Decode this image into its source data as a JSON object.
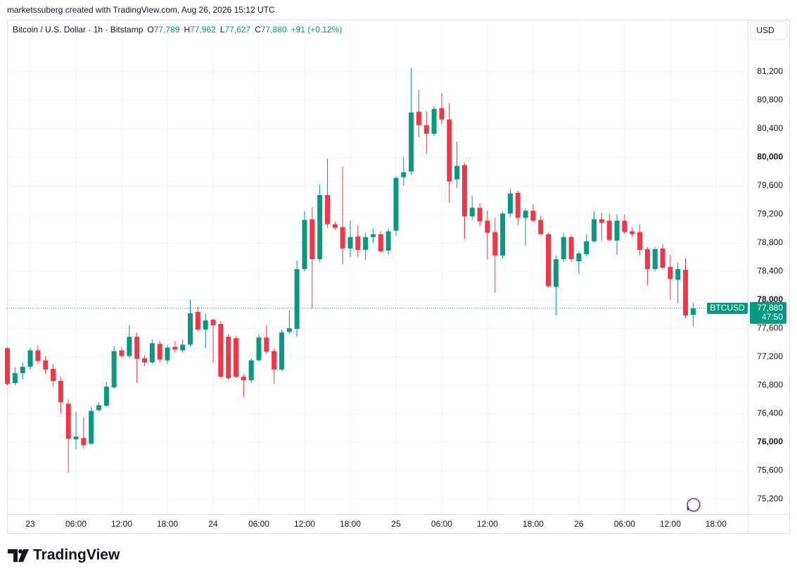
{
  "watermark": "marketssuberg created with TradingView.com, Aug 26, 2026 15:12 UTC",
  "footer": "TradingView",
  "currency_button": "USD",
  "legend": {
    "instrument": "Bitcoin / U.S. Dollar · 1h · Bitstamp",
    "items": [
      {
        "key": "O",
        "text": "77,789"
      },
      {
        "key": "H",
        "text": "77,962"
      },
      {
        "key": "L",
        "text": "77,627"
      },
      {
        "key": "C",
        "text": "77,880"
      }
    ],
    "change": "+91 (+0.12%)"
  },
  "last_price": {
    "symbol": "BTCUSD",
    "price": "77,880",
    "countdown": "47:50"
  },
  "chart_data": {
    "type": "candlestick",
    "up_color": "#089981",
    "down_color": "#f23645",
    "grid": true,
    "x": [
      "2026-08-22T21:00",
      "2026-08-22T22:00",
      "2026-08-22T23:00",
      "2026-08-23T00:00",
      "2026-08-23T01:00",
      "2026-08-23T02:00",
      "2026-08-23T03:00",
      "2026-08-23T04:00",
      "2026-08-23T05:00",
      "2026-08-23T06:00",
      "2026-08-23T07:00",
      "2026-08-23T08:00",
      "2026-08-23T09:00",
      "2026-08-23T10:00",
      "2026-08-23T11:00",
      "2026-08-23T12:00",
      "2026-08-23T13:00",
      "2026-08-23T14:00",
      "2026-08-23T15:00",
      "2026-08-23T16:00",
      "2026-08-23T17:00",
      "2026-08-23T18:00",
      "2026-08-23T19:00",
      "2026-08-23T20:00",
      "2026-08-23T21:00",
      "2026-08-23T22:00",
      "2026-08-23T23:00",
      "2026-08-24T00:00",
      "2026-08-24T01:00",
      "2026-08-24T02:00",
      "2026-08-24T03:00",
      "2026-08-24T04:00",
      "2026-08-24T05:00",
      "2026-08-24T06:00",
      "2026-08-24T07:00",
      "2026-08-24T08:00",
      "2026-08-24T09:00",
      "2026-08-24T10:00",
      "2026-08-24T11:00",
      "2026-08-24T12:00",
      "2026-08-24T13:00",
      "2026-08-24T14:00",
      "2026-08-24T15:00",
      "2026-08-24T16:00",
      "2026-08-24T17:00",
      "2026-08-24T18:00",
      "2026-08-24T19:00",
      "2026-08-24T20:00",
      "2026-08-24T21:00",
      "2026-08-24T22:00",
      "2026-08-24T23:00",
      "2026-08-25T00:00",
      "2026-08-25T01:00",
      "2026-08-25T02:00",
      "2026-08-25T03:00",
      "2026-08-25T04:00",
      "2026-08-25T05:00",
      "2026-08-25T06:00",
      "2026-08-25T07:00",
      "2026-08-25T08:00",
      "2026-08-25T09:00",
      "2026-08-25T10:00",
      "2026-08-25T11:00",
      "2026-08-25T12:00",
      "2026-08-25T13:00",
      "2026-08-25T14:00",
      "2026-08-25T15:00",
      "2026-08-25T16:00",
      "2026-08-25T17:00",
      "2026-08-25T18:00",
      "2026-08-25T19:00",
      "2026-08-25T20:00",
      "2026-08-25T21:00",
      "2026-08-25T22:00",
      "2026-08-25T23:00",
      "2026-08-26T00:00",
      "2026-08-26T01:00",
      "2026-08-26T02:00",
      "2026-08-26T03:00",
      "2026-08-26T04:00",
      "2026-08-26T05:00",
      "2026-08-26T06:00",
      "2026-08-26T07:00",
      "2026-08-26T08:00",
      "2026-08-26T09:00",
      "2026-08-26T10:00",
      "2026-08-26T11:00",
      "2026-08-26T12:00",
      "2026-08-26T13:00",
      "2026-08-26T14:00",
      "2026-08-26T15:00"
    ],
    "open": [
      77320,
      76830,
      76970,
      77060,
      77290,
      77150,
      77030,
      76860,
      76540,
      76040,
      76060,
      75980,
      76450,
      76510,
      76770,
      77290,
      77210,
      77480,
      77180,
      77120,
      77380,
      77150,
      77340,
      77290,
      77370,
      77830,
      77580,
      77720,
      77660,
      77480,
      77460,
      76920,
      76870,
      77150,
      77470,
      77280,
      77020,
      77550,
      77590,
      78430,
      79130,
      78570,
      79470,
      79060,
      79020,
      78720,
      78890,
      78700,
      78880,
      78920,
      78690,
      78970,
      79720,
      79800,
      80640,
      80450,
      80330,
      80690,
      80530,
      79690,
      79890,
      79170,
      79290,
      79110,
      78950,
      78620,
      79210,
      79500,
      79150,
      79250,
      79120,
      78920,
      78180,
      78570,
      78880,
      78540,
      78640,
      78820,
      79130,
      79110,
      78830,
      79110,
      78960,
      78950,
      78710,
      78430,
      78720,
      78460,
      78280,
      78420,
      77789
    ],
    "high": [
      77330,
      77050,
      77120,
      77330,
      77360,
      77210,
      77100,
      76920,
      76600,
      76430,
      76350,
      76500,
      76560,
      76850,
      77350,
      77330,
      77640,
      77540,
      77220,
      77440,
      77420,
      77370,
      77420,
      77440,
      78000,
      77900,
      77810,
      77730,
      77700,
      77520,
      77490,
      76950,
      77180,
      77520,
      77640,
      77320,
      77580,
      77850,
      78550,
      79240,
      79300,
      79620,
      79980,
      79100,
      79870,
      79110,
      79050,
      78950,
      79000,
      78960,
      79000,
      79730,
      80000,
      81250,
      80950,
      80650,
      80720,
      80900,
      80760,
      80220,
      79920,
      79460,
      79350,
      79250,
      79150,
      79240,
      79560,
      79530,
      79280,
      79340,
      79180,
      78940,
      78620,
      78940,
      78910,
      78680,
      78920,
      79240,
      79220,
      79210,
      79200,
      79200,
      79020,
      79060,
      78740,
      78740,
      78780,
      78630,
      78520,
      78580,
      77962
    ],
    "low": [
      76800,
      76800,
      76880,
      77020,
      77100,
      76960,
      76780,
      76400,
      75570,
      75900,
      75910,
      75960,
      76430,
      76500,
      76750,
      77180,
      77180,
      76830,
      77070,
      77100,
      77120,
      77100,
      77260,
      77260,
      77340,
      77560,
      77320,
      77120,
      76900,
      76880,
      76900,
      76640,
      76830,
      77130,
      77240,
      76820,
      77000,
      77520,
      77480,
      78400,
      77880,
      78530,
      79010,
      78980,
      78500,
      78600,
      78600,
      78560,
      78800,
      78660,
      78630,
      78900,
      79600,
      79750,
      80280,
      80050,
      80300,
      80460,
      79360,
      79570,
      78850,
      79120,
      79030,
      78560,
      78100,
      78580,
      79160,
      79050,
      78760,
      79080,
      78910,
      78170,
      77780,
      78530,
      78530,
      78360,
      78610,
      78800,
      78830,
      78820,
      78630,
      78920,
      78880,
      78620,
      78200,
      78400,
      78440,
      78000,
      77950,
      77740,
      77627
    ],
    "close": [
      76820,
      76970,
      77060,
      77290,
      77140,
      77020,
      76860,
      76560,
      76050,
      76080,
      75960,
      76440,
      76520,
      76780,
      77280,
      77210,
      77480,
      77170,
      77120,
      77390,
      77160,
      77330,
      77300,
      77370,
      77810,
      77580,
      77710,
      77640,
      76920,
      76900,
      76920,
      76870,
      77150,
      77470,
      77270,
      77020,
      77540,
      77600,
      78430,
      79120,
      78570,
      79470,
      79060,
      79010,
      78720,
      78880,
      78700,
      78880,
      78920,
      78680,
      78960,
      79710,
      79790,
      80630,
      80450,
      80330,
      80680,
      80530,
      79660,
      79880,
      79170,
      79290,
      79100,
      78940,
      78620,
      79210,
      79490,
      79150,
      79250,
      79110,
      78920,
      78190,
      78570,
      78880,
      78570,
      78650,
      78820,
      79130,
      79080,
      78840,
      79110,
      78950,
      78920,
      78700,
      78430,
      78710,
      78450,
      78290,
      78430,
      77780,
      77880
    ],
    "xlim": [
      "2026-08-22T20:57",
      "2026-08-26T22:10"
    ],
    "ylim": [
      74992,
      81931
    ],
    "xticks": [
      {
        "value": "2026-08-23T00:00",
        "label": "23"
      },
      {
        "value": "2026-08-23T06:00",
        "label": "06:00"
      },
      {
        "value": "2026-08-23T12:00",
        "label": "12:00"
      },
      {
        "value": "2026-08-23T18:00",
        "label": "18:00"
      },
      {
        "value": "2026-08-24T00:00",
        "label": "24"
      },
      {
        "value": "2026-08-24T06:00",
        "label": "06:00"
      },
      {
        "value": "2026-08-24T12:00",
        "label": "12:00"
      },
      {
        "value": "2026-08-24T18:00",
        "label": "18:00"
      },
      {
        "value": "2026-08-25T00:00",
        "label": "25"
      },
      {
        "value": "2026-08-25T06:00",
        "label": "06:00"
      },
      {
        "value": "2026-08-25T12:00",
        "label": "12:00"
      },
      {
        "value": "2026-08-25T18:00",
        "label": "18:00"
      },
      {
        "value": "2026-08-26T00:00",
        "label": "26"
      },
      {
        "value": "2026-08-26T06:00",
        "label": "06:00"
      },
      {
        "value": "2026-08-26T12:00",
        "label": "12:00"
      },
      {
        "value": "2026-08-26T18:00",
        "label": "18:00"
      }
    ],
    "yticks": [
      {
        "value": 75200,
        "label": "75,200"
      },
      {
        "value": 75600,
        "label": "75,600"
      },
      {
        "value": 76000,
        "label": "76,000"
      },
      {
        "value": 76400,
        "label": "76,400"
      },
      {
        "value": 76800,
        "label": "76,800"
      },
      {
        "value": 77200,
        "label": "77,200"
      },
      {
        "value": 77600,
        "label": "77,600"
      },
      {
        "value": 78000,
        "label": "78,000"
      },
      {
        "value": 78400,
        "label": "78,400"
      },
      {
        "value": 78800,
        "label": "78,800"
      },
      {
        "value": 79200,
        "label": "79,200"
      },
      {
        "value": 79600,
        "label": "79,600"
      },
      {
        "value": 80000,
        "label": "80,000"
      },
      {
        "value": 80400,
        "label": "80,400"
      },
      {
        "value": 80800,
        "label": "80,800"
      },
      {
        "value": 81200,
        "label": "81,200"
      }
    ]
  }
}
